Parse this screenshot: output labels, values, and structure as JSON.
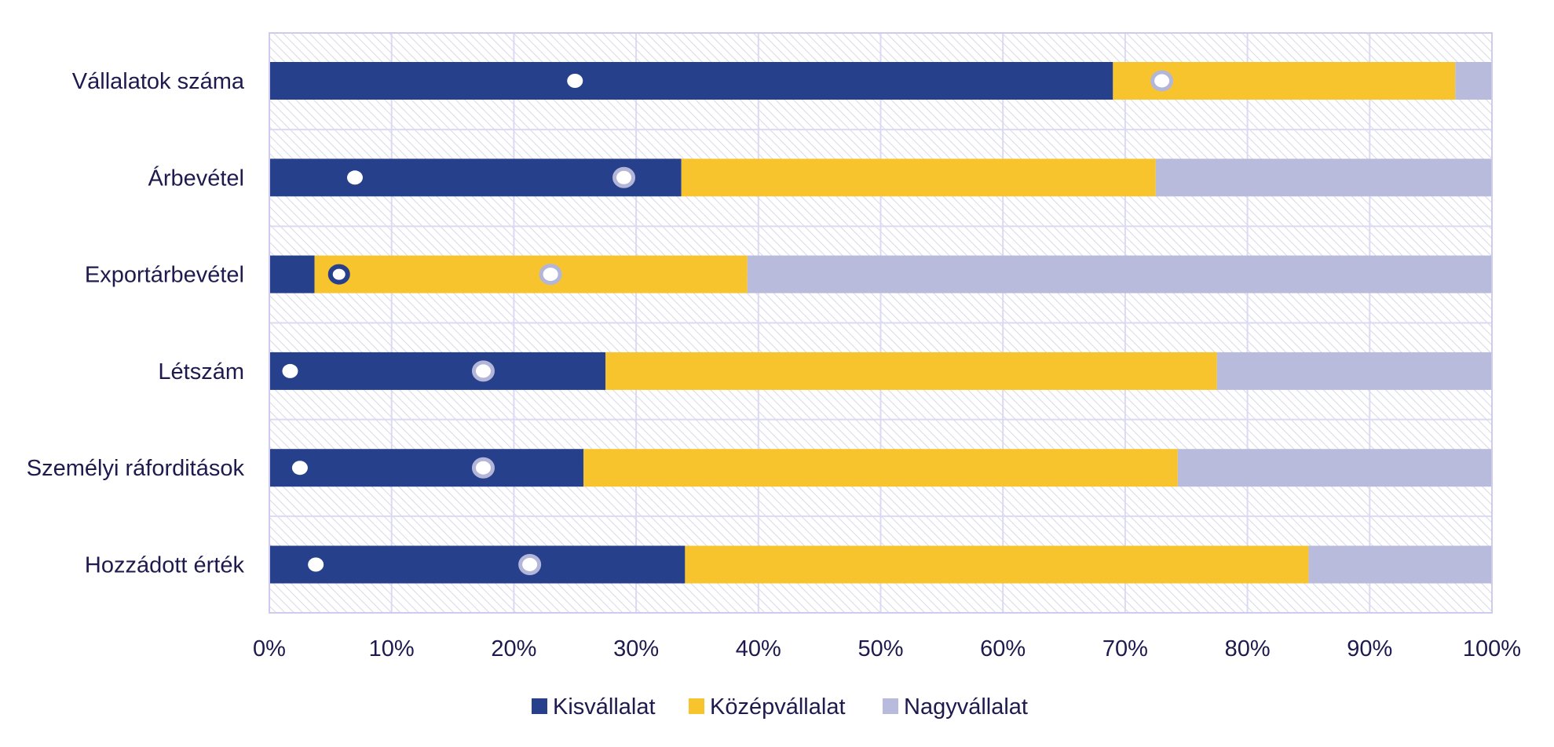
{
  "chart_data": {
    "type": "bar",
    "orientation": "horizontal",
    "stacked": true,
    "categories": [
      "Vállalatok száma",
      "Árbevétel",
      "Exportárbevétel",
      "Létszám",
      "Személyi ráforditások",
      "Hozzádott érték"
    ],
    "series": [
      {
        "name": "Kisvállalat",
        "color": "#26408c",
        "values": [
          69,
          33.7,
          3.7,
          27.5,
          25.7,
          34
        ]
      },
      {
        "name": "Középvállalat",
        "color": "#f7c42e",
        "values": [
          28,
          38.8,
          35.4,
          50,
          48.6,
          51
        ]
      },
      {
        "name": "Nagyvállalat",
        "color": "#b9bbdd",
        "values": [
          3,
          27.5,
          60.9,
          22.5,
          25.7,
          15
        ]
      }
    ],
    "markers": [
      {
        "series": "Kisvállalat",
        "style": "filled-white",
        "values": [
          25,
          7,
          null,
          1.7,
          2.5,
          3.8
        ]
      },
      {
        "series": "Középvállalat",
        "style": "ring-light",
        "values": [
          73,
          29,
          23,
          17.5,
          17.5,
          21.3
        ]
      },
      {
        "series": "Kisvállalat",
        "style": "ring-dark",
        "values": [
          null,
          null,
          5.7,
          null,
          null,
          null
        ]
      }
    ],
    "xticks": [
      "0%",
      "10%",
      "20%",
      "30%",
      "40%",
      "50%",
      "60%",
      "70%",
      "80%",
      "90%",
      "100%"
    ],
    "xlim": [
      0,
      100
    ],
    "grid": true,
    "legend_position": "bottom-center"
  }
}
